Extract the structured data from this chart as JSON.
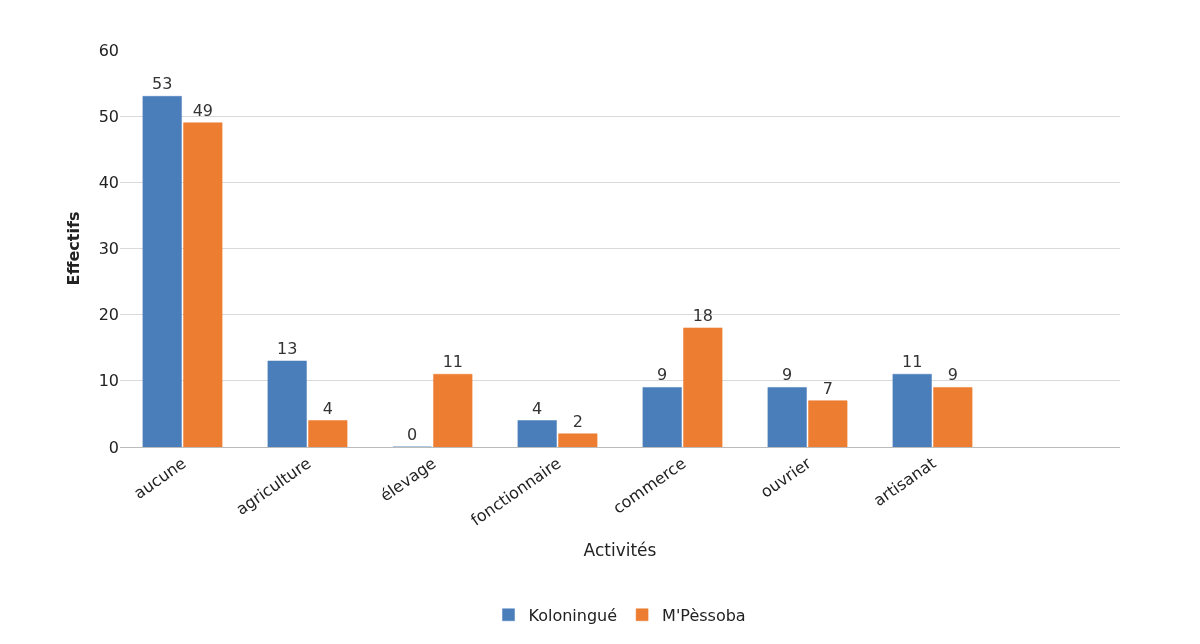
{
  "chart_data": {
    "type": "bar",
    "xlabel": "Activités",
    "ylabel": "Effectifs",
    "categories": [
      "aucune",
      "agriculture",
      "élevage",
      "fonctionnaire",
      "commerce",
      "ouvrier",
      "artisanat"
    ],
    "series": [
      {
        "name": "Koloningué",
        "color": "#4a7ebb",
        "values": [
          53,
          13,
          0,
          4,
          9,
          9,
          11
        ]
      },
      {
        "name": "M'Pèssoba",
        "color": "#ed7d31",
        "values": [
          49,
          4,
          11,
          2,
          18,
          7,
          9
        ]
      }
    ],
    "ylim": [
      0,
      60
    ],
    "yticks": [
      0,
      10,
      20,
      30,
      40,
      50,
      60
    ],
    "grid": "y",
    "legend": "bottom",
    "data_labels": true
  }
}
